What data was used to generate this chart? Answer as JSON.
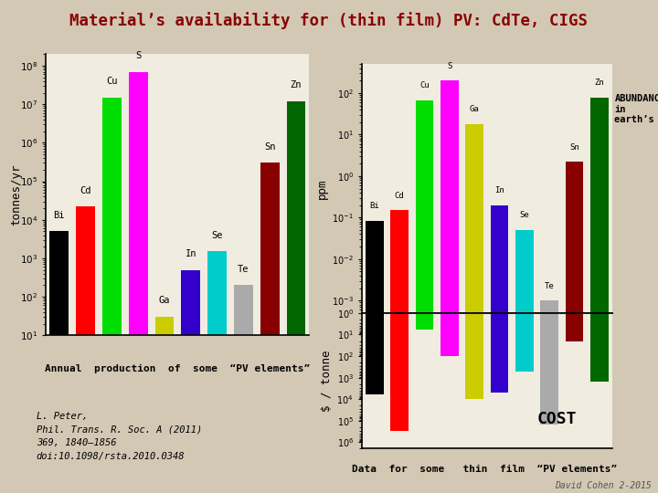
{
  "title": "Material’s availability for (thin film) PV: CdTe, CIGS",
  "bg_color": "#d2c8b4",
  "title_color": "#8b0000",
  "elements": [
    "Bi",
    "Cd",
    "Cu",
    "S",
    "Ga",
    "In",
    "Se",
    "Te",
    "Sn",
    "Zn"
  ],
  "bar_colors": [
    "#000000",
    "#ff0000",
    "#00dd00",
    "#ff00ff",
    "#cccc00",
    "#3300cc",
    "#00cccc",
    "#aaaaaa",
    "#880000",
    "#006600"
  ],
  "production_values": [
    5000,
    22000,
    15000000.0,
    70000000.0,
    30,
    500,
    1500,
    200,
    300000.0,
    12000000.0
  ],
  "abundance_values": [
    0.085,
    0.15,
    68,
    200,
    18,
    0.2,
    0.05,
    0.001,
    2.2,
    79
  ],
  "cost_values": [
    6000,
    300000.0,
    6,
    100,
    10000.0,
    5000,
    500,
    150000.0,
    20,
    1500
  ],
  "production_ylabel": "tonnes/yr",
  "abundance_ylabel": "ppm",
  "cost_ylabel": "$ / tonne",
  "production_label": "Annual  production  of  some  “PV elements”",
  "data_label": "Data  for  some   thin  film  “PV elements”",
  "abundance_label": "ABUNDANCE\nin\nearth’s crust",
  "cost_label": "COST",
  "reference": "L. Peter,\nPhil. Trans. R. Soc. A (2011)\n369, 1840–1856\ndoi:10.1098/rsta.2010.0348",
  "footer": "David Cohen 2-2015",
  "chart_bg": "#f0ece0",
  "prod_ylim_low": 10,
  "prod_ylim_high": 200000000.0,
  "abund_ylim_low": 0.0005,
  "abund_ylim_high": 500,
  "cost_ylim_low": 1,
  "cost_ylim_high": 2000000.0,
  "hline_y": 0.0005
}
